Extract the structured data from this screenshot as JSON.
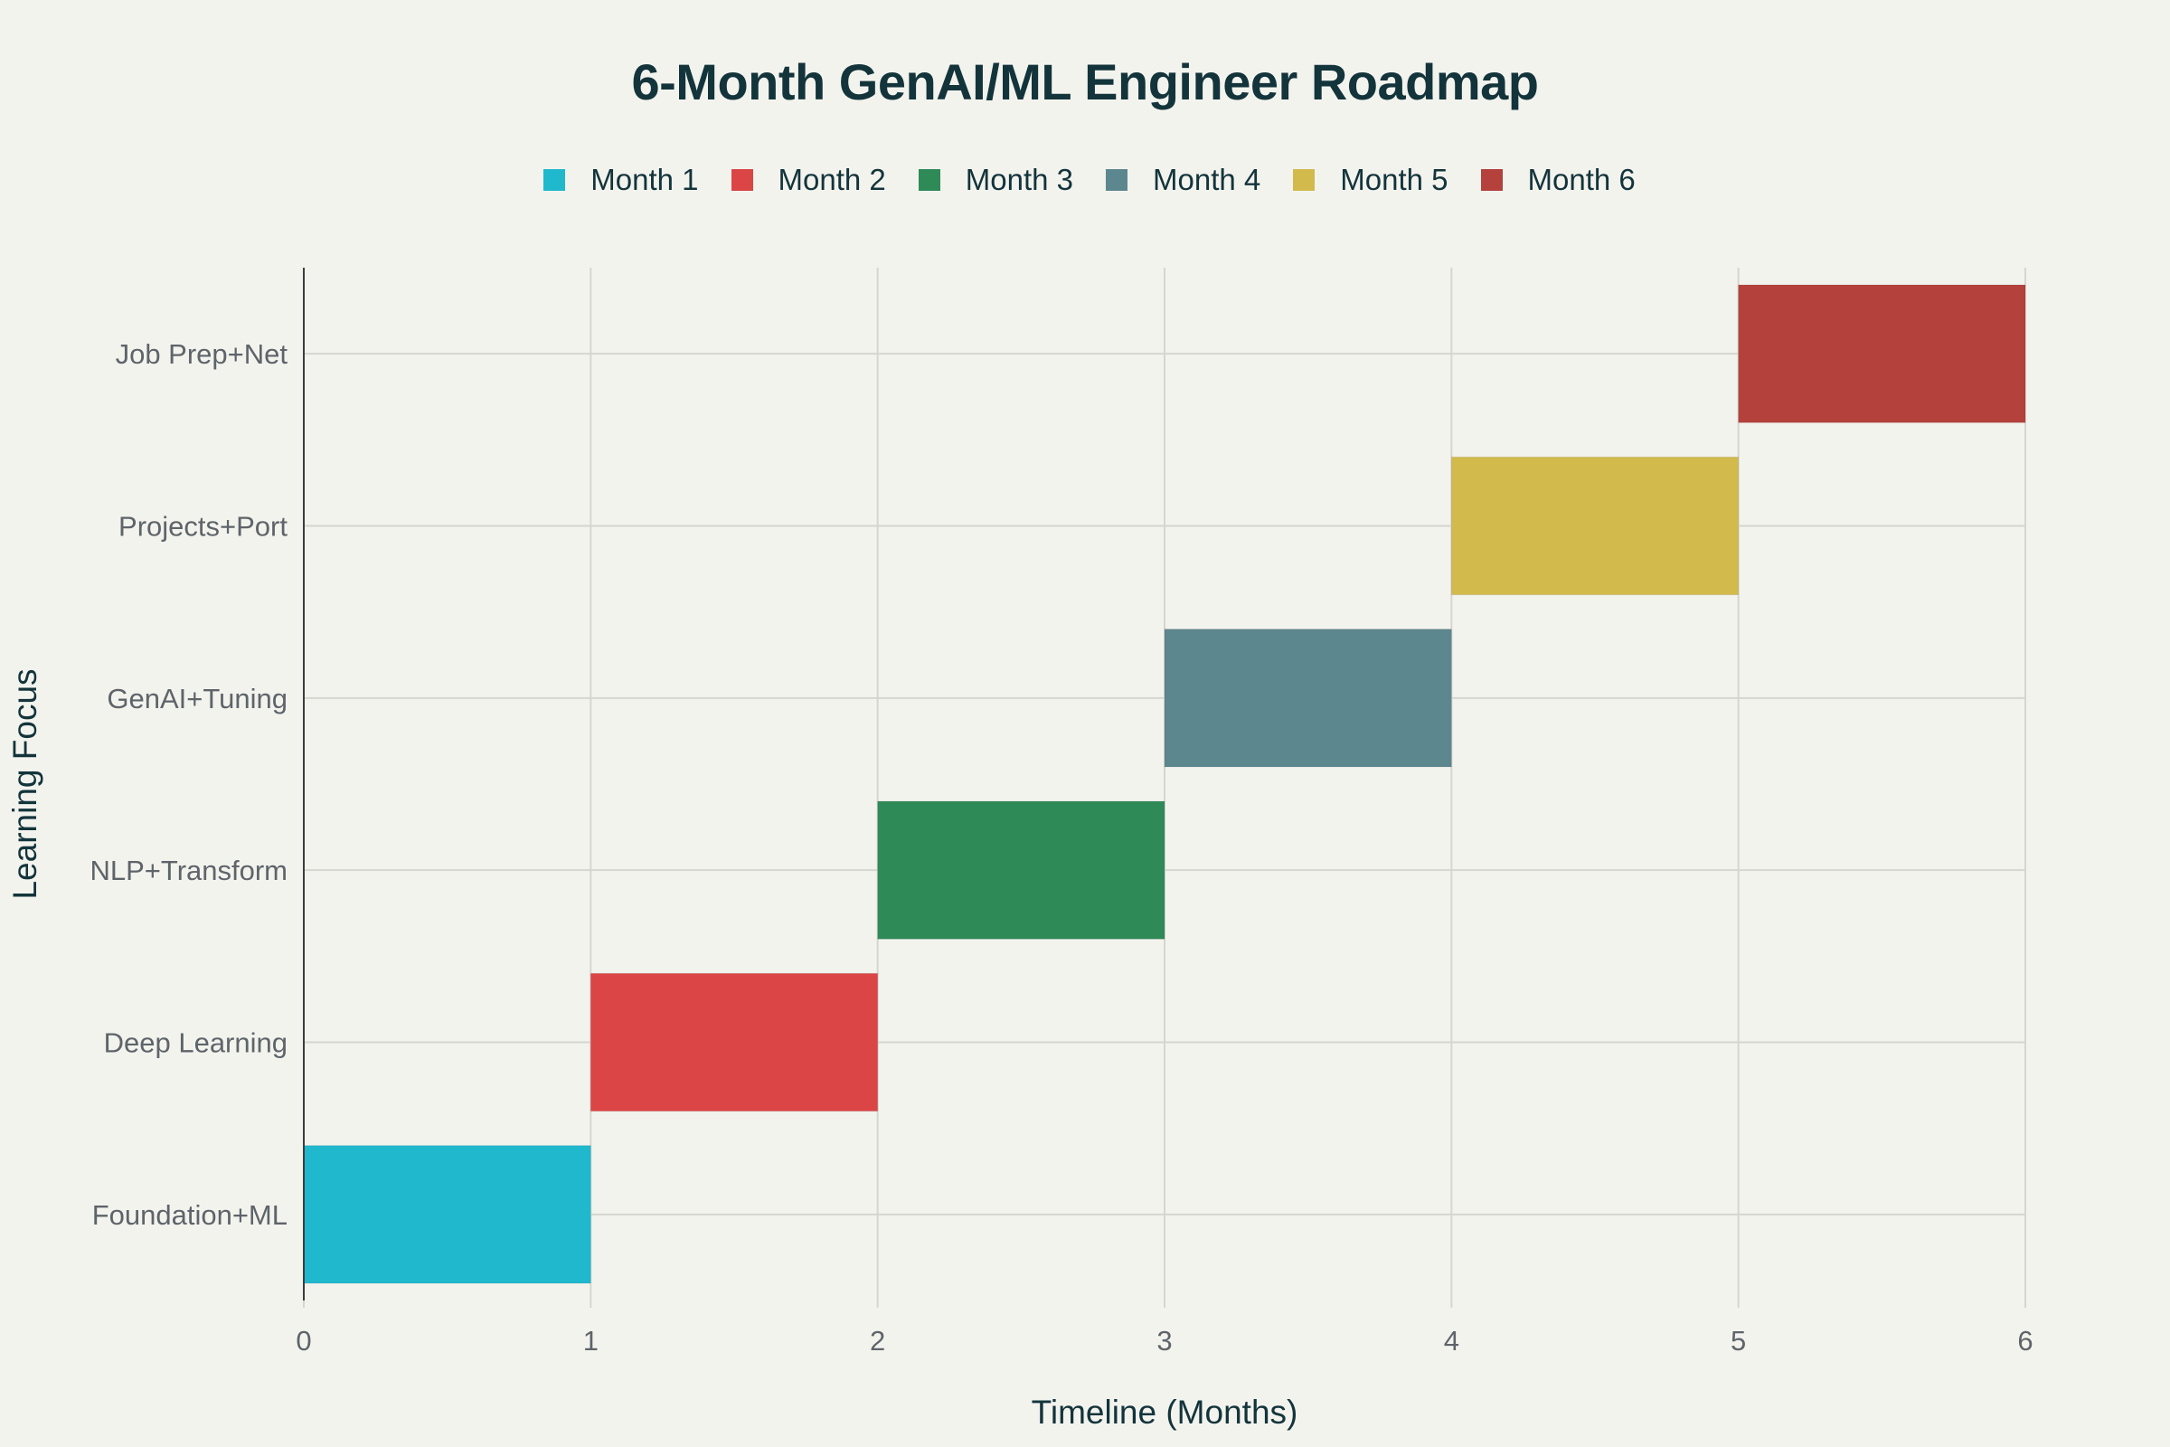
{
  "chart_data": {
    "type": "bar",
    "orientation": "horizontal",
    "title": "6-Month GenAI/ML Engineer Roadmap",
    "xlabel": "Timeline (Months)",
    "ylabel": "Learning Focus",
    "xlim": [
      0,
      6
    ],
    "x_ticks": [
      "0",
      "1",
      "2",
      "3",
      "4",
      "5",
      "6"
    ],
    "categories": [
      "Foundation+ML",
      "Deep Learning",
      "NLP+Transform",
      "GenAI+Tuning",
      "Projects+Port",
      "Job Prep+Net"
    ],
    "grid": true,
    "legend_position": "top-center",
    "series": [
      {
        "name": "Month 1",
        "category": "Foundation+ML",
        "start": 0,
        "end": 1,
        "color": "#1fb8cd"
      },
      {
        "name": "Month 2",
        "category": "Deep Learning",
        "start": 1,
        "end": 2,
        "color": "#db4545"
      },
      {
        "name": "Month 3",
        "category": "NLP+Transform",
        "start": 2,
        "end": 3,
        "color": "#2e8b57"
      },
      {
        "name": "Month 4",
        "category": "GenAI+Tuning",
        "start": 3,
        "end": 4,
        "color": "#5d878f"
      },
      {
        "name": "Month 5",
        "category": "Projects+Port",
        "start": 4,
        "end": 5,
        "color": "#d2ba4c"
      },
      {
        "name": "Month 6",
        "category": "Job Prep+Net",
        "start": 5,
        "end": 6,
        "color": "#b4413c"
      }
    ]
  }
}
